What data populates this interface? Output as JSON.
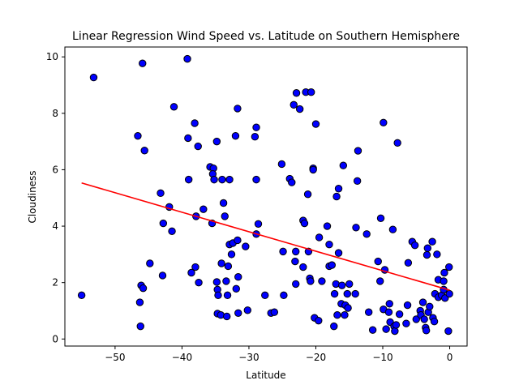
{
  "chart_data": {
    "type": "scatter",
    "title": "Linear Regression Wind Speed vs. Latitude on Southern Hemisphere",
    "xlabel": "Latitude",
    "ylabel": "Cloudiness",
    "xlim": [
      -57.5,
      2.6
    ],
    "ylim": [
      -0.25,
      10.35
    ],
    "xticks": [
      -50,
      -40,
      -30,
      -20,
      -10,
      0
    ],
    "xtick_labels": [
      "−50",
      "−40",
      "−30",
      "−20",
      "−10",
      "0"
    ],
    "yticks": [
      0,
      2,
      4,
      6,
      8,
      10
    ],
    "ytick_labels": [
      "0",
      "2",
      "4",
      "6",
      "8",
      "10"
    ],
    "grid": false,
    "marker_color": "#0000ff",
    "marker_edge_color": "#000000",
    "line_color": "#ff0000",
    "points": [
      [
        -55.0,
        1.55
      ],
      [
        -53.2,
        9.27
      ],
      [
        -46.6,
        7.2
      ],
      [
        -46.3,
        1.3
      ],
      [
        -46.2,
        0.45
      ],
      [
        -46.1,
        1.9
      ],
      [
        -45.9,
        9.77
      ],
      [
        -45.8,
        1.8
      ],
      [
        -45.6,
        6.68
      ],
      [
        -44.8,
        2.68
      ],
      [
        -43.2,
        5.17
      ],
      [
        -42.8,
        4.1
      ],
      [
        -42.9,
        2.25
      ],
      [
        -41.9,
        4.68
      ],
      [
        -41.5,
        3.82
      ],
      [
        -41.2,
        8.23
      ],
      [
        -39.2,
        9.93
      ],
      [
        -39.1,
        7.12
      ],
      [
        -39.0,
        5.65
      ],
      [
        -38.6,
        2.35
      ],
      [
        -38.1,
        7.65
      ],
      [
        -38.0,
        2.55
      ],
      [
        -37.9,
        4.35
      ],
      [
        -37.6,
        6.83
      ],
      [
        -37.5,
        2.0
      ],
      [
        -36.8,
        4.6
      ],
      [
        -35.8,
        6.1
      ],
      [
        -35.5,
        4.1
      ],
      [
        -35.3,
        6.05
      ],
      [
        -35.4,
        5.85
      ],
      [
        -35.2,
        5.65
      ],
      [
        -34.8,
        7.0
      ],
      [
        -34.8,
        2.02
      ],
      [
        -34.7,
        1.75
      ],
      [
        -34.6,
        1.55
      ],
      [
        -34.7,
        0.9
      ],
      [
        -34.2,
        0.85
      ],
      [
        -34.1,
        2.68
      ],
      [
        -34.0,
        5.65
      ],
      [
        -33.8,
        4.82
      ],
      [
        -33.6,
        4.35
      ],
      [
        -33.4,
        2.05
      ],
      [
        -33.3,
        0.8
      ],
      [
        -33.2,
        1.55
      ],
      [
        -33.1,
        2.58
      ],
      [
        -32.9,
        5.65
      ],
      [
        -32.9,
        3.35
      ],
      [
        -32.6,
        3.0
      ],
      [
        -32.4,
        3.4
      ],
      [
        -32.0,
        7.2
      ],
      [
        -31.9,
        1.78
      ],
      [
        -31.7,
        3.5
      ],
      [
        -31.7,
        8.17
      ],
      [
        -31.6,
        2.2
      ],
      [
        -31.6,
        0.92
      ],
      [
        -30.5,
        3.28
      ],
      [
        -30.2,
        1.02
      ],
      [
        -29.1,
        7.17
      ],
      [
        -28.9,
        7.5
      ],
      [
        -28.9,
        5.65
      ],
      [
        -28.9,
        3.72
      ],
      [
        -28.6,
        4.08
      ],
      [
        -27.6,
        1.55
      ],
      [
        -26.7,
        0.92
      ],
      [
        -26.2,
        0.95
      ],
      [
        -25.1,
        6.2
      ],
      [
        -24.9,
        3.1
      ],
      [
        -24.8,
        1.55
      ],
      [
        -23.9,
        5.68
      ],
      [
        -23.6,
        5.55
      ],
      [
        -23.3,
        8.3
      ],
      [
        -23.1,
        2.75
      ],
      [
        -23.0,
        1.95
      ],
      [
        -23.0,
        3.1
      ],
      [
        -22.9,
        8.72
      ],
      [
        -22.4,
        8.15
      ],
      [
        -21.9,
        2.55
      ],
      [
        -21.9,
        4.2
      ],
      [
        -21.7,
        4.1
      ],
      [
        -21.5,
        8.75
      ],
      [
        -21.2,
        5.13
      ],
      [
        -21.1,
        3.1
      ],
      [
        -20.9,
        2.15
      ],
      [
        -20.8,
        2.05
      ],
      [
        -20.7,
        8.75
      ],
      [
        -20.4,
        6.05
      ],
      [
        -20.4,
        6.0
      ],
      [
        -20.2,
        0.75
      ],
      [
        -20.0,
        7.62
      ],
      [
        -19.6,
        0.65
      ],
      [
        -19.5,
        3.6
      ],
      [
        -19.1,
        2.05
      ],
      [
        -18.3,
        4.0
      ],
      [
        -18.0,
        2.58
      ],
      [
        -18.0,
        3.35
      ],
      [
        -17.6,
        2.62
      ],
      [
        -17.3,
        0.45
      ],
      [
        -17.2,
        1.6
      ],
      [
        -17.0,
        1.95
      ],
      [
        -16.9,
        5.05
      ],
      [
        -16.8,
        0.85
      ],
      [
        -16.6,
        5.33
      ],
      [
        -16.6,
        3.05
      ],
      [
        -16.2,
        1.25
      ],
      [
        -16.1,
        1.9
      ],
      [
        -15.9,
        6.15
      ],
      [
        -15.7,
        0.85
      ],
      [
        -15.6,
        1.2
      ],
      [
        -15.3,
        1.6
      ],
      [
        -15.2,
        1.1
      ],
      [
        -15.0,
        1.95
      ],
      [
        -14.1,
        1.6
      ],
      [
        -14.0,
        3.95
      ],
      [
        -13.8,
        5.6
      ],
      [
        -13.7,
        6.67
      ],
      [
        -12.4,
        3.72
      ],
      [
        -12.1,
        0.95
      ],
      [
        -11.5,
        0.32
      ],
      [
        -10.7,
        2.75
      ],
      [
        -10.4,
        2.05
      ],
      [
        -10.3,
        4.28
      ],
      [
        -9.9,
        7.67
      ],
      [
        -9.9,
        1.05
      ],
      [
        -9.7,
        2.45
      ],
      [
        -9.5,
        0.35
      ],
      [
        -9.1,
        0.95
      ],
      [
        -9.0,
        1.25
      ],
      [
        -8.9,
        0.6
      ],
      [
        -8.5,
        3.88
      ],
      [
        -8.3,
        0.45
      ],
      [
        -8.2,
        0.28
      ],
      [
        -8.0,
        0.5
      ],
      [
        -7.8,
        6.95
      ],
      [
        -7.5,
        0.88
      ],
      [
        -6.5,
        0.55
      ],
      [
        -6.3,
        1.2
      ],
      [
        -6.2,
        2.7
      ],
      [
        -5.6,
        3.45
      ],
      [
        -5.2,
        3.32
      ],
      [
        -5.0,
        0.7
      ],
      [
        -4.4,
        1.0
      ],
      [
        -4.3,
        0.85
      ],
      [
        -4.0,
        1.3
      ],
      [
        -3.8,
        0.7
      ],
      [
        -3.6,
        0.4
      ],
      [
        -3.5,
        0.3
      ],
      [
        -3.4,
        2.98
      ],
      [
        -3.3,
        3.22
      ],
      [
        -3.2,
        0.95
      ],
      [
        -3.0,
        1.15
      ],
      [
        -2.6,
        3.45
      ],
      [
        -2.5,
        0.75
      ],
      [
        -2.3,
        0.62
      ],
      [
        -2.2,
        1.6
      ],
      [
        -1.9,
        3.0
      ],
      [
        -1.7,
        2.1
      ],
      [
        -1.7,
        1.48
      ],
      [
        -1.2,
        1.55
      ],
      [
        -0.9,
        2.05
      ],
      [
        -0.9,
        1.75
      ],
      [
        -0.8,
        2.35
      ],
      [
        -0.7,
        1.45
      ],
      [
        -0.2,
        0.28
      ],
      [
        -0.1,
        2.55
      ],
      [
        -0.05,
        1.6
      ]
    ],
    "regression": {
      "x": [
        -55.0,
        0.0
      ],
      "y": [
        5.53,
        1.73
      ]
    }
  }
}
